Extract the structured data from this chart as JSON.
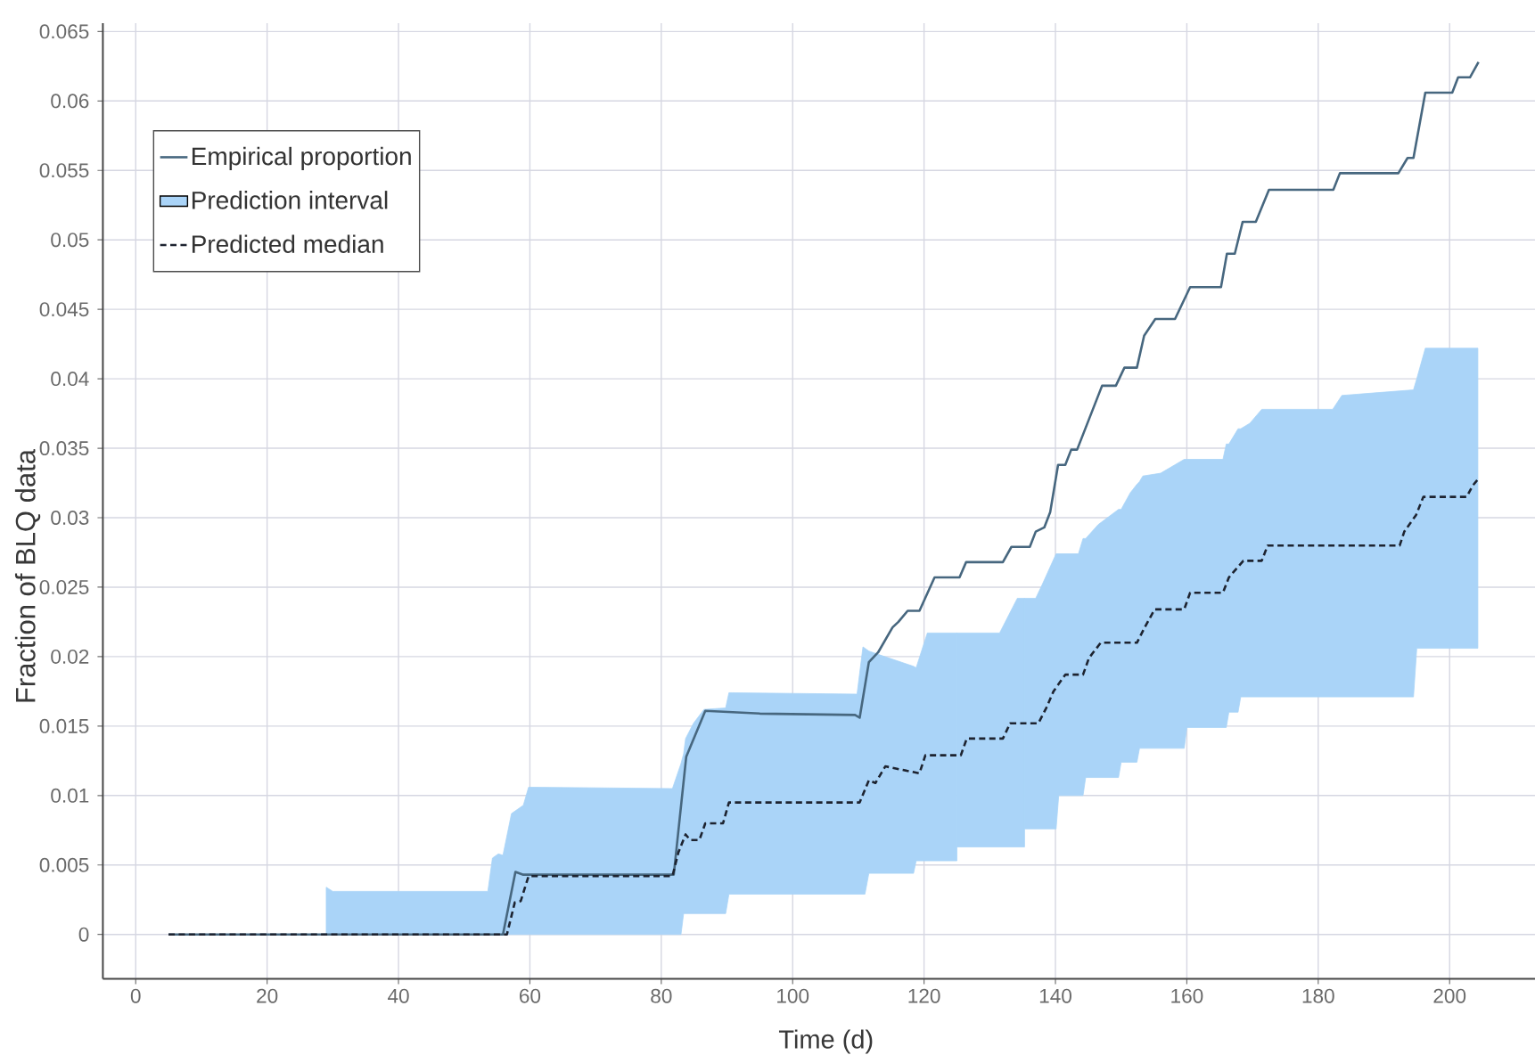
{
  "chart_data": {
    "type": "line",
    "xlabel": "Time (d)",
    "ylabel": "Fraction of BLQ data",
    "xlim": [
      -5,
      213
    ],
    "ylim": [
      -0.0032,
      0.0656
    ],
    "xticks": [
      0,
      20,
      40,
      60,
      80,
      100,
      120,
      140,
      160,
      180,
      200
    ],
    "yticks": [
      0,
      0.005,
      0.01,
      0.015,
      0.02,
      0.025,
      0.03,
      0.035,
      0.04,
      0.045,
      0.05,
      0.055,
      0.06,
      0.065
    ],
    "grid": true,
    "legend": "top left",
    "series": [
      {
        "name": "Empirical proportion",
        "color": "#47677f",
        "line_style": "solid",
        "x": [
          5,
          55.9,
          57.8,
          59,
          81.9,
          83.8,
          86.7,
          95,
          109.5,
          110.2,
          111.6,
          113.0,
          115.2,
          116.1,
          117.5,
          119.3,
          121.6,
          125.4,
          126.4,
          132.0,
          133.3,
          136.1,
          137.0,
          138.3,
          139.2,
          140.4,
          141.5,
          142.4,
          143.3,
          147.1,
          149.2,
          150.5,
          152.4,
          153.5,
          155.2,
          158.2,
          160.5,
          165.2,
          166.1,
          167.3,
          168.5,
          170.5,
          172.5,
          182.3,
          183.3,
          192.2,
          193.6,
          194.5,
          196.3,
          200.4,
          201.3,
          203.1,
          204.4
        ],
        "values": [
          0,
          0,
          0.0045,
          0.0043,
          0.0043,
          0.0128,
          0.0161,
          0.0159,
          0.0158,
          0.0156,
          0.0196,
          0.0203,
          0.0221,
          0.0225,
          0.0233,
          0.0233,
          0.0257,
          0.0257,
          0.0268,
          0.0268,
          0.0279,
          0.0279,
          0.029,
          0.0293,
          0.0304,
          0.0338,
          0.0338,
          0.0349,
          0.0349,
          0.0395,
          0.0395,
          0.0408,
          0.0408,
          0.0431,
          0.0443,
          0.0443,
          0.0466,
          0.0466,
          0.049,
          0.049,
          0.0513,
          0.0513,
          0.0536,
          0.0536,
          0.0548,
          0.0548,
          0.0559,
          0.0559,
          0.0606,
          0.0606,
          0.0617,
          0.0617,
          0.0628
        ]
      },
      {
        "name": "Prediction interval",
        "type": "area",
        "color": "#aad4f8",
        "x": [
          29.0,
          30.0,
          53.6,
          54.3,
          55.2,
          55.9,
          57.2,
          59.0,
          59.8,
          81.7,
          83.0,
          83.4,
          83.7,
          84.9,
          86.5,
          89.8,
          90.3,
          109.8,
          110.7,
          111.0,
          111.6,
          113.4,
          118.4,
          118.8,
          120.5,
          125.0
        ],
        "values": [
          null,
          null,
          null,
          null,
          null,
          null,
          null,
          null,
          null,
          null,
          null,
          null,
          null,
          null,
          null,
          null,
          null,
          null,
          null,
          null,
          null,
          null,
          null,
          null,
          null,
          null
        ],
        "upper": [
          0.0034,
          0.0031,
          0.0031,
          0.0055,
          0.0058,
          0.0057,
          0.0087,
          0.0093,
          0.0106,
          0.0105,
          0.0123,
          0.013,
          0.0141,
          0.0152,
          0.0162,
          0.0163,
          0.0174,
          0.0173,
          0.0207,
          0.0206,
          0.0204,
          0.0201,
          0.0193,
          0.0192,
          0.0217,
          0.0217
        ],
        "lower": [
          0,
          0,
          0,
          0,
          0,
          0,
          0,
          0,
          0,
          0,
          0,
          0.0015,
          0.0015,
          0.0015,
          0.0015,
          0.0015,
          0.0029,
          0.0029,
          0.0029,
          0.0029,
          0.0044,
          0.0044,
          0.0044,
          0.0053,
          0.0053,
          0.0053
        ]
      },
      {
        "type": "area",
        "color": "#aad4f8",
        "x": [
          125.0,
          131.5,
          132.9,
          134.2,
          135.3
        ],
        "values": [
          null,
          null,
          null,
          null,
          null
        ],
        "upper": [
          0.0217,
          0.0217,
          0.023,
          0.0242,
          0.0242
        ],
        "lower": [
          0.0063,
          0.0063,
          0.0063,
          0.0063,
          0.0063
        ]
      },
      {
        "type": "area",
        "color": "#aad4f8",
        "x": [
          135.3,
          137.0,
          138.0,
          140.1,
          140.5,
          143.5,
          144.2,
          144.6,
          146.5,
          149.6,
          150.0,
          151.4,
          152.4,
          152.8,
          153.3,
          156.0,
          159.6,
          160.0,
          165.5,
          166.0,
          166.4,
          167.8,
          168.2,
          169.6,
          171.4,
          182.2,
          183.6,
          194.5,
          195.0,
          196.3,
          204.3
        ],
        "values": [
          null,
          null,
          null,
          null,
          null,
          null,
          null,
          null,
          null,
          null,
          null,
          null,
          null,
          null,
          null,
          null,
          null,
          null,
          null,
          null,
          null,
          null,
          null,
          null,
          null,
          null,
          null,
          null,
          null,
          null,
          null
        ],
        "upper": [
          0.0242,
          0.0242,
          0.0252,
          0.0274,
          0.0274,
          0.0274,
          0.0285,
          0.0285,
          0.0295,
          0.0306,
          0.0306,
          0.0318,
          0.0324,
          0.0326,
          0.033,
          0.0332,
          0.0342,
          0.0342,
          0.0342,
          0.0353,
          0.0353,
          0.0364,
          0.0364,
          0.0368,
          0.0378,
          0.0378,
          0.0388,
          0.0392,
          0.04,
          0.0422,
          0.0422
        ],
        "lower": [
          0.0076,
          0.0076,
          0.0076,
          0.0076,
          0.01,
          0.01,
          0.01,
          0.0113,
          0.0113,
          0.0113,
          0.0124,
          0.0124,
          0.0124,
          0.0134,
          0.0134,
          0.0134,
          0.0134,
          0.0149,
          0.0149,
          0.0149,
          0.016,
          0.016,
          0.0171,
          0.0171,
          0.0171,
          0.0171,
          0.0171,
          0.0171,
          0.0206,
          0.0206,
          0.0206
        ]
      },
      {
        "name": "Predicted median",
        "color": "#1d2330",
        "line_style": "dashed",
        "x": [
          5,
          56.5,
          57.7,
          58.6,
          59.8,
          81.7,
          82.6,
          83.7,
          84.4,
          85.8,
          86.7,
          89.4,
          90.3,
          110.2,
          111.6,
          112.6,
          114.1,
          119.3,
          120.2,
          125.6,
          126.5,
          132.0,
          133.1,
          137.4,
          138.6,
          139.7,
          141.5,
          144.2,
          145.1,
          146.9,
          152.4,
          153.7,
          155.1,
          159.6,
          160.5,
          165.5,
          166.4,
          168.6,
          171.4,
          172.3,
          192.4,
          193.1,
          194.9,
          196.0,
          202.6,
          203.5,
          204.2
        ],
        "values": [
          0,
          0,
          0.0023,
          0.0024,
          0.0042,
          0.0042,
          0.0059,
          0.0072,
          0.0068,
          0.0068,
          0.008,
          0.008,
          0.0095,
          0.0095,
          0.0111,
          0.0109,
          0.0121,
          0.0116,
          0.0129,
          0.0129,
          0.0141,
          0.0141,
          0.0152,
          0.0152,
          0.0163,
          0.0175,
          0.0187,
          0.0187,
          0.0199,
          0.021,
          0.021,
          0.0222,
          0.0234,
          0.0234,
          0.0246,
          0.0246,
          0.0257,
          0.0269,
          0.0269,
          0.028,
          0.028,
          0.029,
          0.0302,
          0.0315,
          0.0315,
          0.0323,
          0.0327
        ]
      }
    ]
  }
}
